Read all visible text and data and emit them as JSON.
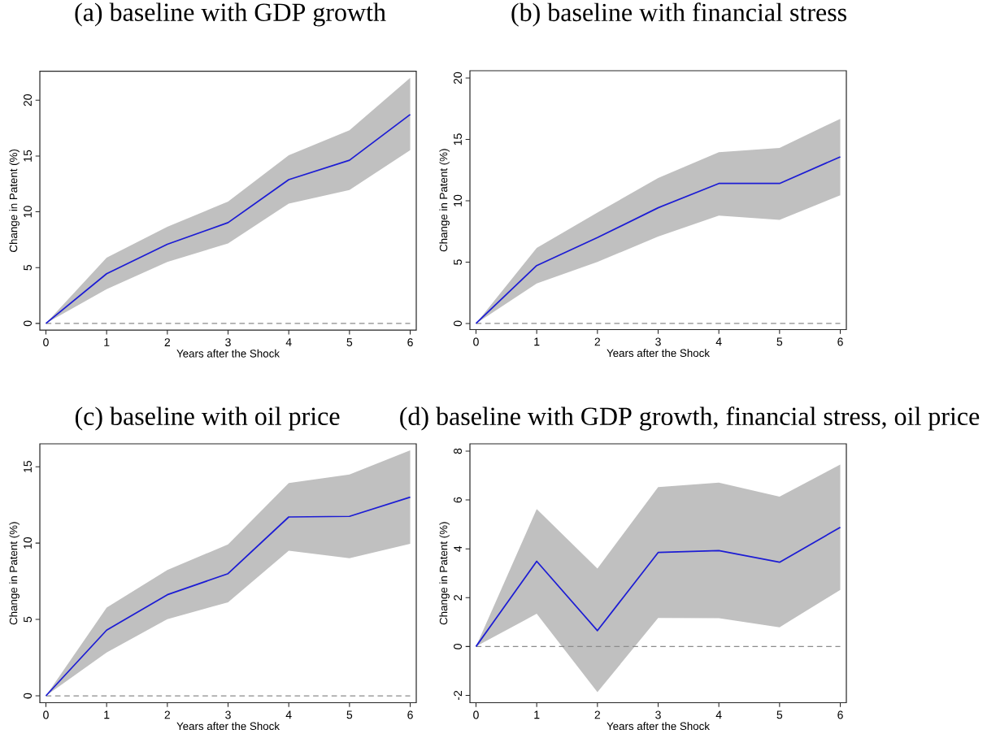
{
  "chart_data": [
    {
      "type": "line",
      "title": "(a) baseline with GDP growth",
      "xlabel": "Years after the Shock",
      "ylabel": "Change in Patent (%)",
      "x": [
        0,
        1,
        2,
        3,
        4,
        5,
        6
      ],
      "series": [
        {
          "color": "#1c1cd4",
          "values": [
            0,
            4.45,
            7.09,
            9.03,
            12.88,
            14.62,
            18.72
          ],
          "lower": [
            0,
            3.07,
            5.51,
            7.17,
            10.74,
            11.95,
            15.52
          ],
          "upper": [
            0,
            5.89,
            8.65,
            10.92,
            15.07,
            17.31,
            22.01
          ]
        }
      ],
      "xlim": [
        -0.1,
        6.1
      ],
      "ylim": [
        -0.6,
        22.6
      ],
      "xticks": [
        0,
        1,
        2,
        3,
        4,
        5,
        6
      ],
      "yticks": [
        0,
        5,
        10,
        15,
        20
      ],
      "ref_lines": [
        {
          "axis": "y",
          "value": 0,
          "color": "#8c8c8c",
          "line_style": "dashed"
        }
      ]
    },
    {
      "type": "line",
      "title": "(b) baseline with financial stress",
      "xlabel": "Years after the Shock",
      "ylabel": "Change in Patent (%)",
      "x": [
        0,
        1,
        2,
        3,
        4,
        5,
        6
      ],
      "series": [
        {
          "color": "#1c1cd4",
          "values": [
            0,
            4.72,
            7.0,
            9.43,
            11.41,
            11.41,
            13.58
          ],
          "lower": [
            0,
            3.26,
            5.01,
            7.09,
            8.79,
            8.44,
            10.45
          ],
          "upper": [
            0,
            6.16,
            9.04,
            11.85,
            13.95,
            14.31,
            16.68
          ]
        }
      ],
      "xlim": [
        -0.1,
        6.1
      ],
      "ylim": [
        -0.5,
        20.6
      ],
      "xticks": [
        0,
        1,
        2,
        3,
        4,
        5,
        6
      ],
      "yticks": [
        0,
        5,
        10,
        15,
        20
      ],
      "ref_lines": [
        {
          "axis": "y",
          "value": 0,
          "color": "#8c8c8c",
          "line_style": "dashed"
        }
      ]
    },
    {
      "type": "line",
      "title": "(c) baseline with oil price",
      "xlabel": "Years after the Shock",
      "ylabel": "Change in Patent (%)",
      "x": [
        0,
        1,
        2,
        3,
        4,
        5,
        6
      ],
      "series": [
        {
          "color": "#1c1cd4",
          "values": [
            0,
            4.3,
            6.62,
            8.0,
            11.71,
            11.75,
            13.01
          ],
          "lower": [
            0,
            2.83,
            5.02,
            6.12,
            9.5,
            9.01,
            9.96
          ],
          "upper": [
            0,
            5.77,
            8.24,
            9.91,
            13.93,
            14.49,
            16.07
          ]
        }
      ],
      "xlim": [
        -0.1,
        6.1
      ],
      "ylim": [
        -0.45,
        16.5
      ],
      "xticks": [
        0,
        1,
        2,
        3,
        4,
        5,
        6
      ],
      "yticks": [
        0,
        5,
        10,
        15
      ],
      "ref_lines": [
        {
          "axis": "y",
          "value": 0,
          "color": "#8c8c8c",
          "line_style": "dashed"
        }
      ]
    },
    {
      "type": "line",
      "title": "(d) baseline with GDP growth, financial stress, oil price",
      "xlabel": "Years after the Shock",
      "ylabel": "Change in Patent (%)",
      "x": [
        0,
        1,
        2,
        3,
        4,
        5,
        6
      ],
      "series": [
        {
          "color": "#1c1cd4",
          "values": [
            0,
            3.49,
            0.65,
            3.85,
            3.93,
            3.45,
            4.88
          ],
          "lower": [
            0,
            1.34,
            -1.87,
            1.17,
            1.16,
            0.79,
            2.32
          ],
          "upper": [
            0,
            5.63,
            3.19,
            6.53,
            6.71,
            6.14,
            7.45
          ]
        }
      ],
      "xlim": [
        -0.1,
        6.1
      ],
      "ylim": [
        -2.3,
        8.3
      ],
      "xticks": [
        0,
        1,
        2,
        3,
        4,
        5,
        6
      ],
      "yticks": [
        -2,
        0,
        2,
        4,
        6,
        8
      ],
      "ref_lines": [
        {
          "axis": "y",
          "value": 0,
          "color": "#8c8c8c",
          "line_style": "dashed"
        }
      ]
    }
  ]
}
